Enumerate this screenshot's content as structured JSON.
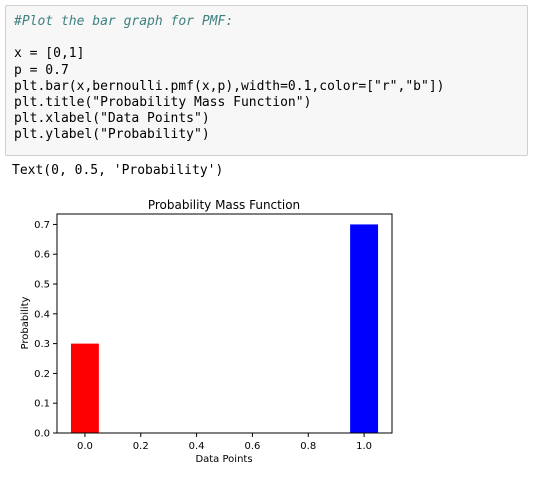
{
  "code_cell": {
    "lines": [
      "#Plot the bar graph for PMF:",
      "",
      "x = [0,1]",
      "p = 0.7",
      "plt.bar(x,bernoulli.pmf(x,p),width=0.1,color=[\"r\",\"b\"])",
      "plt.title(\"Probability Mass Function\")",
      "plt.xlabel(\"Data Points\")",
      "plt.ylabel(\"Probability\")"
    ]
  },
  "output": {
    "text": "Text(0, 0.5, 'Probability')"
  },
  "chart_data": {
    "type": "bar",
    "title": "Probability Mass Function",
    "xlabel": "Data Points",
    "ylabel": "Probability",
    "x": [
      0,
      1
    ],
    "values": [
      0.3,
      0.7
    ],
    "bar_width": 0.1,
    "colors": [
      "#ff0000",
      "#0000ff"
    ],
    "xlim": [
      -0.1,
      1.1
    ],
    "ylim": [
      0,
      0.735
    ],
    "xticks": [
      "0.0",
      "0.2",
      "0.4",
      "0.6",
      "0.8",
      "1.0"
    ],
    "yticks": [
      "0.0",
      "0.1",
      "0.2",
      "0.3",
      "0.4",
      "0.5",
      "0.6",
      "0.7"
    ],
    "grid": false
  }
}
